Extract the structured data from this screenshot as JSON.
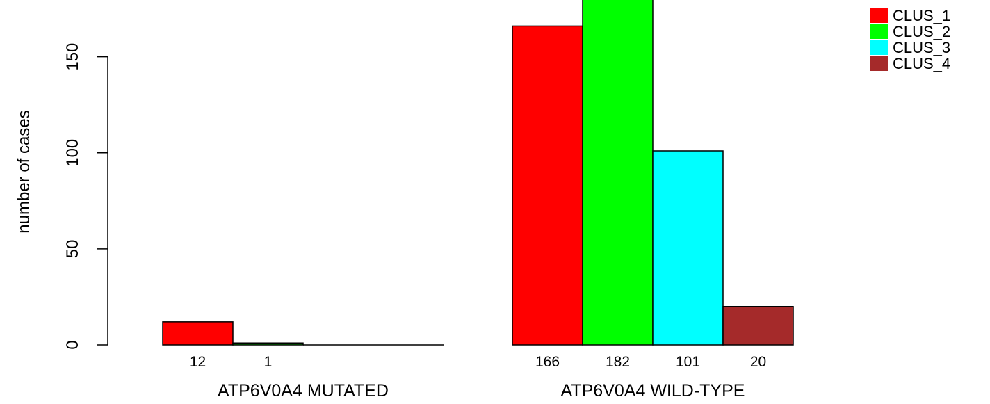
{
  "chart_data": {
    "type": "bar",
    "ylabel": "number of cases",
    "ylim": [
      0,
      180
    ],
    "yticks": [
      0,
      50,
      100,
      150
    ],
    "groups": [
      {
        "label": "ATP6V0A4 MUTATED",
        "values": [
          12,
          1,
          0,
          0
        ],
        "value_labels": [
          "12",
          "1",
          "",
          ""
        ]
      },
      {
        "label": "ATP6V0A4 WILD-TYPE",
        "values": [
          166,
          182,
          101,
          20
        ],
        "value_labels": [
          "166",
          "182",
          "101",
          "20"
        ]
      }
    ],
    "series": [
      {
        "name": "CLUS_1",
        "color": "#ff0000"
      },
      {
        "name": "CLUS_2",
        "color": "#00ff00"
      },
      {
        "name": "CLUS_3",
        "color": "#00ffff"
      },
      {
        "name": "CLUS_4",
        "color": "#a52a2a"
      }
    ],
    "legend_position": "top-right",
    "grid": false
  }
}
